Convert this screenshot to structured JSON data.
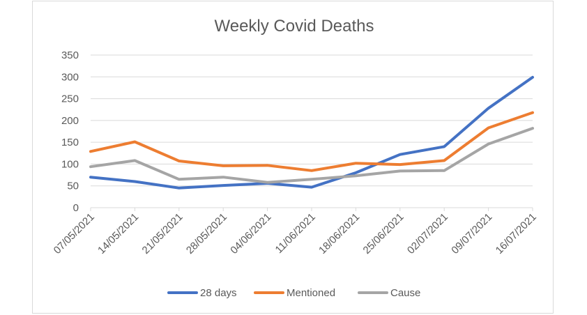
{
  "chart_data": {
    "type": "line",
    "title": "Weekly Covid Deaths",
    "xlabel": "",
    "ylabel": "",
    "categories": [
      "07/05/2021",
      "14/05/2021",
      "21/05/2021",
      "28/05/2021",
      "04/06/2021",
      "11/06/2021",
      "18/06/2021",
      "25/06/2021",
      "02/07/2021",
      "09/07/2021",
      "16/07/2021"
    ],
    "ylim": [
      0,
      350
    ],
    "yticks": [
      0,
      50,
      100,
      150,
      200,
      250,
      300,
      350
    ],
    "grid": "horizontal",
    "legend_position": "bottom",
    "series": [
      {
        "name": "28 days",
        "color": "#4472c4",
        "values": [
          70,
          60,
          45,
          51,
          56,
          47,
          80,
          122,
          140,
          228,
          299
        ]
      },
      {
        "name": "Mentioned",
        "color": "#ed7d31",
        "values": [
          129,
          151,
          107,
          96,
          97,
          85,
          102,
          99,
          108,
          183,
          218
        ]
      },
      {
        "name": "Cause",
        "color": "#a5a5a5",
        "values": [
          94,
          108,
          65,
          70,
          58,
          65,
          73,
          84,
          85,
          146,
          182
        ]
      }
    ]
  }
}
